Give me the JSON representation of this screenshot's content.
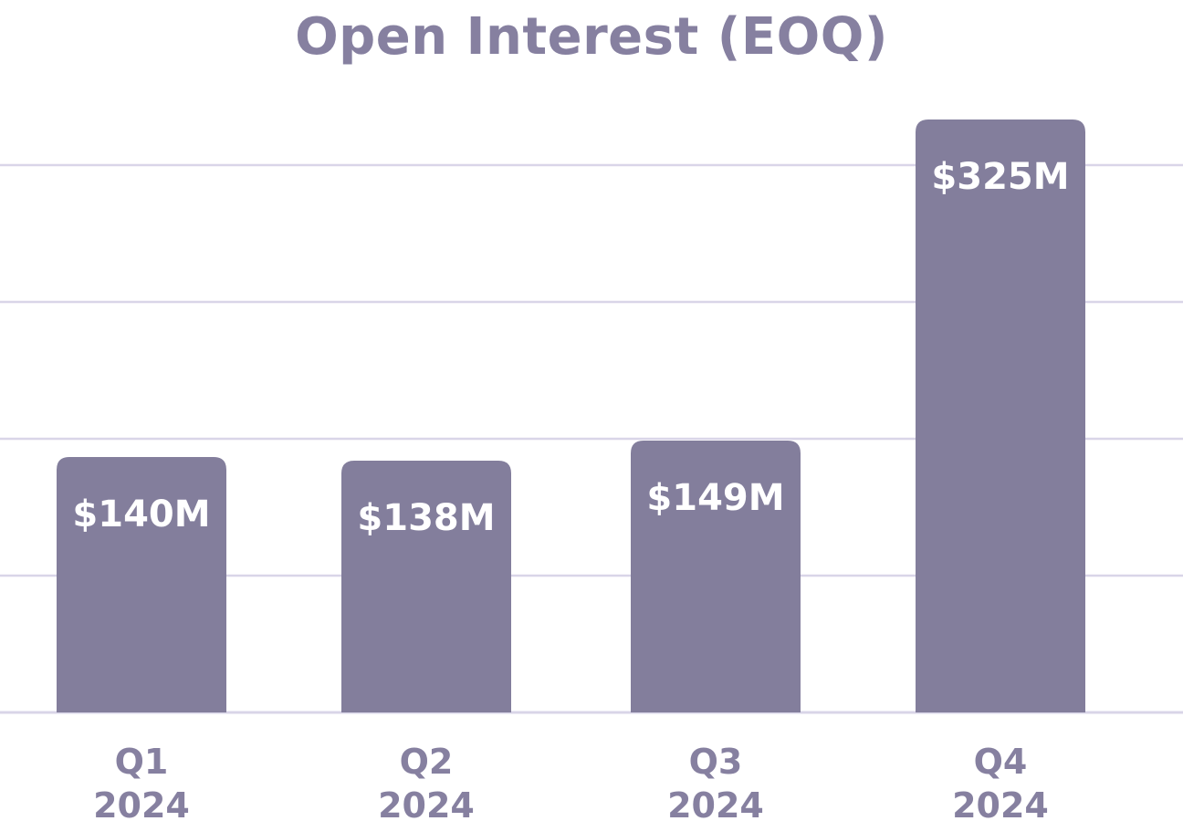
{
  "chart_data": {
    "type": "bar",
    "title": "Open Interest (EOQ)",
    "xlabel": "",
    "ylabel": "",
    "categories": [
      [
        "Q1",
        "2024"
      ],
      [
        "Q2",
        "2024"
      ],
      [
        "Q3",
        "2024"
      ],
      [
        "Q4",
        "2024"
      ]
    ],
    "values": [
      140,
      138,
      149,
      325
    ],
    "value_labels": [
      "$140M",
      "$138M",
      "$149M",
      "$325M"
    ],
    "unit": "$M",
    "ylim": [
      0,
      350
    ],
    "grid": true,
    "legend": "none",
    "colors": {
      "bar": "#837e9c",
      "grid": "#d9d5e8",
      "text": "#8680a0",
      "label": "#ffffff"
    }
  }
}
